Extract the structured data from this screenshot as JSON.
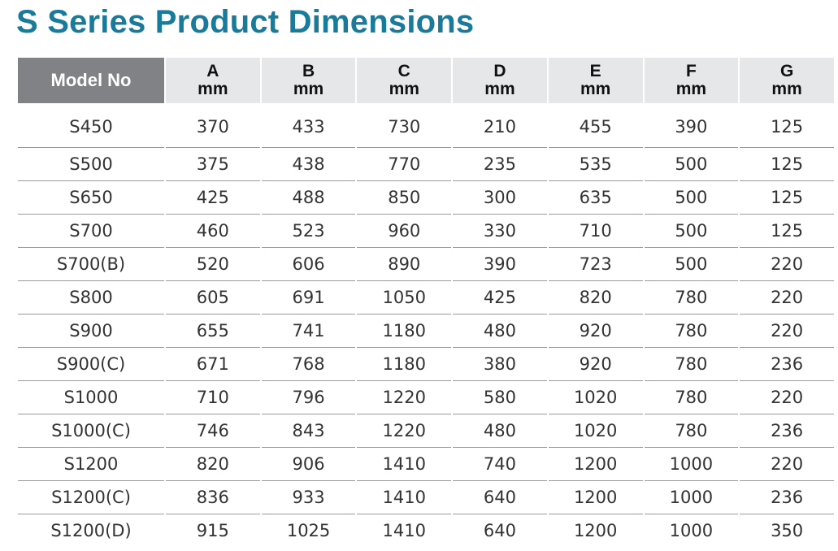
{
  "title": "S Series Product Dimensions",
  "table": {
    "columns": [
      {
        "label": "Model No"
      },
      {
        "label": "A",
        "unit": "mm"
      },
      {
        "label": "B",
        "unit": "mm"
      },
      {
        "label": "C",
        "unit": "mm"
      },
      {
        "label": "D",
        "unit": "mm"
      },
      {
        "label": "E",
        "unit": "mm"
      },
      {
        "label": "F",
        "unit": "mm"
      },
      {
        "label": "G",
        "unit": "mm"
      }
    ],
    "rows": [
      [
        "S450",
        "370",
        "433",
        "730",
        "210",
        "455",
        "390",
        "125"
      ],
      [
        "S500",
        "375",
        "438",
        "770",
        "235",
        "535",
        "500",
        "125"
      ],
      [
        "S650",
        "425",
        "488",
        "850",
        "300",
        "635",
        "500",
        "125"
      ],
      [
        "S700",
        "460",
        "523",
        "960",
        "330",
        "710",
        "500",
        "125"
      ],
      [
        "S700(B)",
        "520",
        "606",
        "890",
        "390",
        "723",
        "500",
        "220"
      ],
      [
        "S800",
        "605",
        "691",
        "1050",
        "425",
        "820",
        "780",
        "220"
      ],
      [
        "S900",
        "655",
        "741",
        "1180",
        "480",
        "920",
        "780",
        "220"
      ],
      [
        "S900(C)",
        "671",
        "768",
        "1180",
        "380",
        "920",
        "780",
        "236"
      ],
      [
        "S1000",
        "710",
        "796",
        "1220",
        "580",
        "1020",
        "780",
        "220"
      ],
      [
        "S1000(C)",
        "746",
        "843",
        "1220",
        "480",
        "1020",
        "780",
        "236"
      ],
      [
        "S1200",
        "820",
        "906",
        "1410",
        "740",
        "1200",
        "1000",
        "220"
      ],
      [
        "S1200(C)",
        "836",
        "933",
        "1410",
        "640",
        "1200",
        "1000",
        "236"
      ],
      [
        "S1200(D)",
        "915",
        "1025",
        "1410",
        "640",
        "1200",
        "1000",
        "350"
      ]
    ]
  },
  "colors": {
    "title": "#1a7a9a",
    "model_header_bg": "#808285",
    "header_bg": "#e6e7e8",
    "row_divider": "#9a9a9a"
  }
}
